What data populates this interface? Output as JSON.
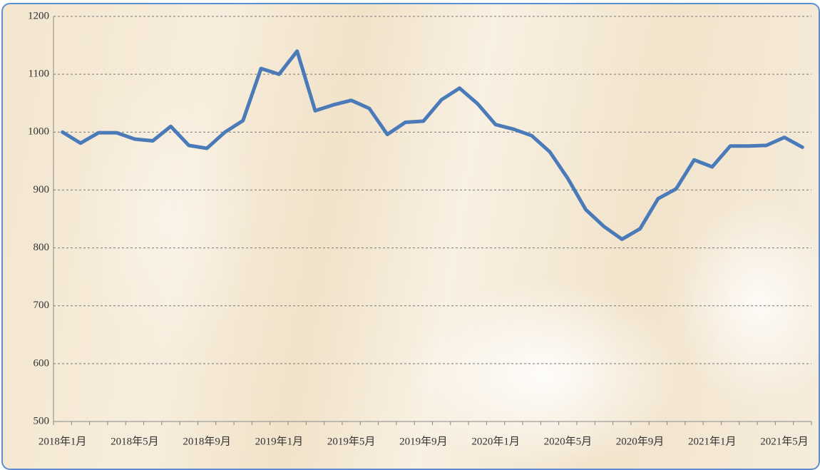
{
  "chart_data": {
    "type": "line",
    "categories": [
      "2018年1月",
      null,
      null,
      null,
      "2018年5月",
      null,
      null,
      null,
      "2018年9月",
      null,
      null,
      null,
      "2019年1月",
      null,
      null,
      null,
      "2019年5月",
      null,
      null,
      null,
      "2019年9月",
      null,
      null,
      null,
      "2020年1月",
      null,
      null,
      null,
      "2020年5月",
      null,
      null,
      null,
      "2020年9月",
      null,
      null,
      null,
      "2021年1月",
      null,
      null,
      null,
      "2021年5月",
      null
    ],
    "values": [
      1000,
      981,
      999,
      999,
      988,
      985,
      1010,
      977,
      972,
      1000,
      1020,
      1110,
      1100,
      1140,
      1037,
      1047,
      1055,
      1041,
      996,
      1017,
      1019,
      1056,
      1076,
      1049,
      1013,
      1005,
      994,
      966,
      920,
      866,
      837,
      815,
      833,
      885,
      902,
      952,
      940,
      976,
      976,
      977,
      991,
      974
    ],
    "color": "#4a7ab8",
    "ylim": [
      500,
      1200
    ],
    "yticks": [
      500,
      600,
      700,
      800,
      900,
      1000,
      1100,
      1200
    ],
    "grid": true
  }
}
